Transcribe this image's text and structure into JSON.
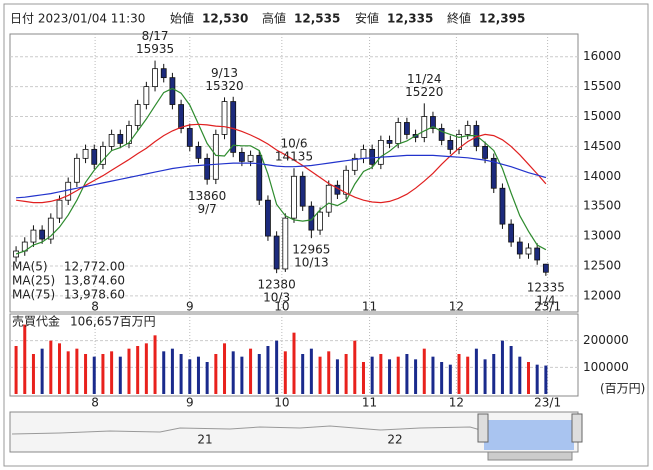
{
  "header": {
    "date": "日付 2023/01/04 11:30",
    "items": [
      {
        "label": "始値",
        "value": "12,530"
      },
      {
        "label": "高値",
        "value": "12,535"
      },
      {
        "label": "安値",
        "value": "12,335"
      },
      {
        "label": "終値",
        "value": "12,395"
      }
    ]
  },
  "chart_data": [
    {
      "type": "candlestick",
      "up_color": "#ffffff",
      "down_color": "#1c2a7c",
      "grid": true,
      "xlim": [
        -0.7,
        64.7
      ],
      "xticks": [
        {
          "value": 9.1,
          "label": "8"
        },
        {
          "value": 20.0,
          "label": "9"
        },
        {
          "value": 30.6,
          "label": "10"
        },
        {
          "value": 40.7,
          "label": "11"
        },
        {
          "value": 50.7,
          "label": "12"
        },
        {
          "value": 61.2,
          "label": "23/1"
        }
      ],
      "ylim": [
        11730,
        16380
      ],
      "yticks": [
        12000,
        12500,
        13000,
        13500,
        14000,
        14500,
        15000,
        15500,
        16000
      ],
      "open": [
        12650,
        12750,
        12900,
        13100,
        12950,
        13300,
        13600,
        13900,
        14300,
        14450,
        14200,
        14500,
        14700,
        14550,
        14850,
        15200,
        15500,
        15800,
        15650,
        15200,
        14800,
        14500,
        14300,
        13950,
        14700,
        15250,
        14400,
        14250,
        14350,
        13600,
        13000,
        12450,
        13300,
        14000,
        13500,
        13100,
        13400,
        13850,
        13700,
        14100,
        14300,
        14450,
        14200,
        14600,
        14550,
        14900,
        14700,
        14650,
        15000,
        14800,
        14600,
        14450,
        14700,
        14850,
        14500,
        14300,
        13800,
        13200,
        12900,
        12700,
        12800,
        12530
      ],
      "high": [
        12830,
        12980,
        13180,
        13180,
        13380,
        13680,
        13980,
        14380,
        14530,
        14530,
        14580,
        14780,
        14780,
        14930,
        15280,
        15580,
        15935,
        15880,
        15730,
        15280,
        14880,
        14580,
        14380,
        14780,
        15320,
        15330,
        14480,
        14430,
        14430,
        13680,
        13080,
        13380,
        14135,
        14080,
        13580,
        13480,
        13930,
        13930,
        14180,
        14380,
        14530,
        14530,
        14680,
        14680,
        14980,
        14980,
        14780,
        15220,
        15080,
        14880,
        14680,
        14780,
        14930,
        14930,
        14580,
        14380,
        13880,
        13280,
        12980,
        12880,
        12880,
        12535
      ],
      "low": [
        12570,
        12670,
        12820,
        12870,
        12870,
        13220,
        13520,
        13820,
        14220,
        14120,
        14120,
        14420,
        14470,
        14470,
        14770,
        15120,
        15420,
        15570,
        15120,
        14720,
        14420,
        14220,
        13860,
        13870,
        14620,
        14320,
        14170,
        14170,
        13520,
        12920,
        12380,
        12400,
        13220,
        13420,
        12965,
        13020,
        13320,
        13620,
        13620,
        14020,
        14220,
        14120,
        14120,
        14470,
        14470,
        14620,
        14570,
        14570,
        14720,
        14520,
        14370,
        14370,
        14620,
        14420,
        14220,
        13720,
        13120,
        12820,
        12620,
        12620,
        12520,
        12335
      ],
      "close": [
        12750,
        12900,
        13100,
        12950,
        13300,
        13600,
        13900,
        14300,
        14450,
        14200,
        14500,
        14700,
        14550,
        14850,
        15200,
        15500,
        15800,
        15650,
        15200,
        14800,
        14500,
        14300,
        13950,
        14700,
        15250,
        14400,
        14250,
        14350,
        13600,
        13000,
        12450,
        13300,
        14000,
        13500,
        13100,
        13400,
        13850,
        13700,
        14100,
        14300,
        14450,
        14200,
        14600,
        14550,
        14900,
        14700,
        14650,
        15000,
        14800,
        14600,
        14450,
        14700,
        14850,
        14500,
        14300,
        13800,
        13200,
        12900,
        12700,
        12800,
        12600,
        12395
      ],
      "annotations": [
        {
          "label": "8/17",
          "value": 15935
        },
        {
          "label": "9/13",
          "value": 15320
        },
        {
          "label": "9/7",
          "value": 13860
        },
        {
          "label": "10/6",
          "value": 14135
        },
        {
          "label": "10/3",
          "value": 12380
        },
        {
          "label": "10/13",
          "value": 12965
        },
        {
          "label": "11/24",
          "value": 15220
        },
        {
          "label": "1/4",
          "value": 12335
        }
      ],
      "series": [
        {
          "name": "MA(5)",
          "color": "#2e8b2e",
          "latest_label": "12,772.00",
          "values": [
            12700,
            12750,
            12850,
            12900,
            13000,
            13150,
            13350,
            13600,
            13900,
            14100,
            14270,
            14430,
            14480,
            14560,
            14760,
            14960,
            15180,
            15400,
            15470,
            15390,
            15190,
            14870,
            14550,
            14350,
            14340,
            14520,
            14510,
            14510,
            14430,
            14040,
            13530,
            13340,
            13270,
            13250,
            13270,
            13440,
            13550,
            13510,
            13590,
            13870,
            14080,
            14150,
            14330,
            14420,
            14540,
            14590,
            14680,
            14760,
            14830,
            14750,
            14700,
            14650,
            14680,
            14680,
            14560,
            14430,
            14130,
            13720,
            13340,
            13080,
            12850,
            12772
          ]
        },
        {
          "name": "MA(25)",
          "color": "#e02020",
          "latest_label": "13,874.60",
          "values": [
            13600,
            13580,
            13560,
            13560,
            13580,
            13620,
            13680,
            13760,
            13850,
            13930,
            14010,
            14100,
            14190,
            14280,
            14380,
            14470,
            14580,
            14680,
            14760,
            14820,
            14860,
            14870,
            14860,
            14840,
            14830,
            14800,
            14750,
            14690,
            14620,
            14540,
            14440,
            14360,
            14270,
            14180,
            14080,
            13980,
            13880,
            13800,
            13720,
            13650,
            13600,
            13570,
            13560,
            13580,
            13630,
            13700,
            13800,
            13920,
            14050,
            14200,
            14340,
            14470,
            14580,
            14660,
            14700,
            14680,
            14610,
            14500,
            14360,
            14200,
            14040,
            13874.6
          ]
        },
        {
          "name": "MA(75)",
          "color": "#2233cc",
          "latest_label": "13,978.60",
          "values": [
            13640,
            13650,
            13670,
            13690,
            13710,
            13740,
            13770,
            13800,
            13830,
            13860,
            13890,
            13920,
            13950,
            13980,
            14010,
            14040,
            14070,
            14100,
            14130,
            14150,
            14170,
            14180,
            14190,
            14200,
            14210,
            14220,
            14220,
            14220,
            14210,
            14190,
            14170,
            14160,
            14160,
            14170,
            14180,
            14200,
            14220,
            14240,
            14260,
            14280,
            14300,
            14310,
            14320,
            14330,
            14340,
            14350,
            14350,
            14350,
            14350,
            14340,
            14330,
            14320,
            14310,
            14290,
            14270,
            14240,
            14200,
            14160,
            14110,
            14060,
            14020,
            13978.6
          ]
        }
      ]
    },
    {
      "type": "bar",
      "title": "売買代金",
      "latest_label": "106,657百万円",
      "unit": "(百万円)",
      "up_color": "#e8211c",
      "down_color": "#1a2a8c",
      "grid": true,
      "xlim": [
        -0.7,
        64.7
      ],
      "xticks": [
        {
          "value": 9.1,
          "label": "8"
        },
        {
          "value": 20.0,
          "label": "9"
        },
        {
          "value": 30.6,
          "label": "10"
        },
        {
          "value": 40.7,
          "label": "11"
        },
        {
          "value": 50.7,
          "label": "12"
        },
        {
          "value": 61.2,
          "label": "23/1"
        }
      ],
      "ylim": [
        0,
        300000
      ],
      "yticks": [
        100000,
        200000
      ],
      "values": [
        180000,
        260000,
        150000,
        170000,
        200000,
        190000,
        160000,
        170000,
        150000,
        140000,
        150000,
        160000,
        140000,
        170000,
        180000,
        190000,
        220000,
        160000,
        170000,
        150000,
        130000,
        140000,
        120000,
        150000,
        190000,
        160000,
        140000,
        170000,
        150000,
        180000,
        200000,
        160000,
        230000,
        150000,
        170000,
        140000,
        160000,
        130000,
        150000,
        200000,
        120000,
        140000,
        150000,
        130000,
        140000,
        150000,
        130000,
        170000,
        140000,
        120000,
        110000,
        150000,
        140000,
        170000,
        130000,
        150000,
        200000,
        180000,
        140000,
        120000,
        110000,
        106657
      ]
    }
  ],
  "navigator": {
    "labels": [
      "21",
      "22"
    ]
  }
}
